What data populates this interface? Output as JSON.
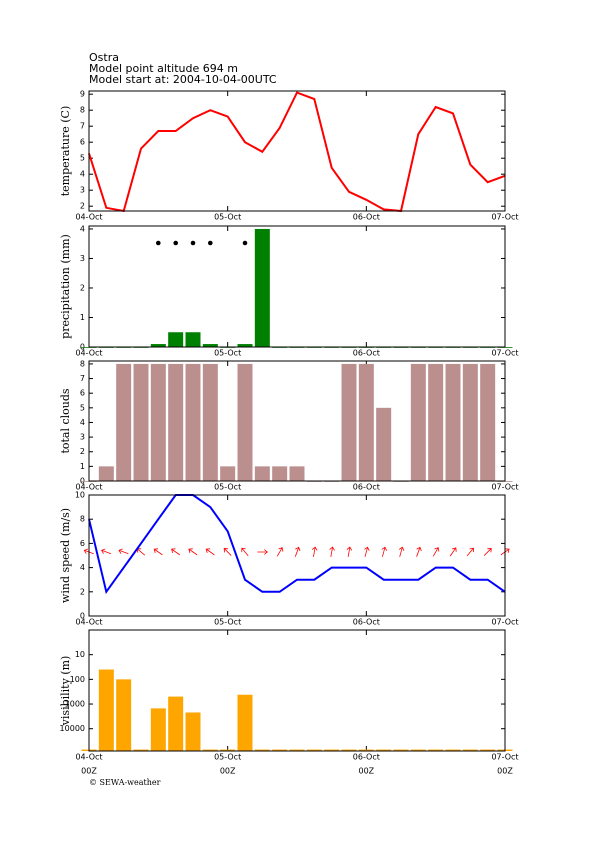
{
  "header": {
    "lines": [
      "Ostra",
      "Model point altitude  694 m",
      "Model start at: 2004-10-04-00UTC"
    ],
    "footer": "© SEWA-weather",
    "time_labels": [
      "00Z",
      "00Z",
      "00Z",
      "00Z"
    ]
  },
  "chart_data": [
    {
      "type": "line",
      "ylabel": "temperature (C)",
      "color": "#ff0000",
      "x": [
        0,
        3,
        6,
        9,
        12,
        15,
        18,
        21,
        24,
        27,
        30,
        33,
        36,
        39,
        42,
        45,
        48,
        51,
        54,
        57,
        60,
        63,
        66,
        69,
        72
      ],
      "values": [
        5.3,
        1.9,
        1.7,
        5.6,
        6.7,
        6.7,
        7.5,
        8.0,
        7.6,
        6.0,
        5.4,
        6.9,
        9.1,
        8.7,
        4.4,
        2.9,
        2.4,
        1.8,
        1.7,
        6.5,
        8.2,
        7.8,
        4.6,
        3.5,
        3.9
      ],
      "xlim": [
        0,
        72
      ],
      "xticks": [
        {
          "value": 0,
          "label": "04-Oct"
        },
        {
          "value": 24,
          "label": "05-Oct"
        },
        {
          "value": 48,
          "label": "06-Oct"
        },
        {
          "value": 72,
          "label": "07-Oct"
        }
      ],
      "ylim": [
        1.7,
        9.2
      ],
      "yticks": [
        2,
        3,
        4,
        5,
        6,
        7,
        8,
        9
      ]
    },
    {
      "type": "bar",
      "ylabel": "precipitation (mm)",
      "color": "#008000",
      "x": [
        0,
        3,
        6,
        9,
        12,
        15,
        18,
        21,
        24,
        27,
        30,
        33,
        36,
        39,
        42,
        45,
        48,
        51,
        54,
        57,
        60,
        63,
        66,
        69,
        72
      ],
      "values": [
        0,
        0,
        0,
        0,
        0.1,
        0.5,
        0.5,
        0.1,
        0,
        0.1,
        4.0,
        0,
        0,
        0,
        0,
        0,
        0,
        0,
        0,
        0,
        0,
        0,
        0,
        0,
        0
      ],
      "xlim": [
        0,
        72
      ],
      "xticks": [
        {
          "value": 0,
          "label": "04-Oct"
        },
        {
          "value": 24,
          "label": "05-Oct"
        },
        {
          "value": 48,
          "label": "06-Oct"
        },
        {
          "value": 72,
          "label": "07-Oct"
        }
      ],
      "ylim": [
        0,
        4.1
      ],
      "yticks": [
        0,
        1,
        2,
        3,
        4
      ]
    },
    {
      "type": "bar",
      "ylabel": "total clouds",
      "color": "#bc8f8f",
      "x": [
        0,
        3,
        6,
        9,
        12,
        15,
        18,
        21,
        24,
        27,
        30,
        33,
        36,
        39,
        42,
        45,
        48,
        51,
        54,
        57,
        60,
        63,
        66,
        69,
        72
      ],
      "values": [
        0,
        1,
        8,
        8,
        8,
        8,
        8,
        8,
        1,
        8,
        1,
        1,
        1,
        0,
        0,
        8,
        8,
        5,
        0,
        8,
        8,
        8,
        8,
        8,
        0
      ],
      "xlim": [
        0,
        72
      ],
      "xticks": [
        {
          "value": 0,
          "label": "04-Oct"
        },
        {
          "value": 24,
          "label": "05-Oct"
        },
        {
          "value": 48,
          "label": "06-Oct"
        },
        {
          "value": 72,
          "label": "07-Oct"
        }
      ],
      "ylim": [
        0,
        8.2
      ],
      "yticks": [
        0,
        1,
        2,
        3,
        4,
        5,
        6,
        7,
        8
      ]
    },
    {
      "type": "line",
      "ylabel": "wind speed (m/s)",
      "color": "#0000ff",
      "x": [
        0,
        3,
        6,
        9,
        12,
        15,
        18,
        21,
        24,
        27,
        30,
        33,
        36,
        39,
        42,
        45,
        48,
        51,
        54,
        57,
        60,
        63,
        66,
        69,
        72
      ],
      "values": [
        8,
        2,
        4,
        6,
        8,
        10,
        10,
        9,
        7,
        3,
        2,
        2,
        3,
        3,
        4,
        4,
        4,
        3,
        3,
        3,
        4,
        4,
        3,
        3,
        2
      ],
      "xlim": [
        0,
        72
      ],
      "xticks": [
        {
          "value": 0,
          "label": "04-Oct"
        },
        {
          "value": 24,
          "label": "05-Oct"
        },
        {
          "value": 48,
          "label": "06-Oct"
        },
        {
          "value": 72,
          "label": "07-Oct"
        }
      ],
      "ylim": [
        0,
        10
      ],
      "yticks": [
        0,
        2,
        4,
        6,
        8,
        10
      ]
    },
    {
      "type": "bar",
      "ylabel": "visibility (m)",
      "color": "#ffa500",
      "log": true,
      "inverted": true,
      "x": [
        0,
        3,
        6,
        9,
        12,
        15,
        18,
        21,
        24,
        27,
        30,
        33,
        36,
        39,
        42,
        45,
        48,
        51,
        54,
        57,
        60,
        63,
        66,
        69,
        72
      ],
      "values": [
        70000,
        40,
        100,
        70000,
        1500,
        500,
        2200,
        70000,
        70000,
        420,
        70000,
        70000,
        70000,
        70000,
        70000,
        70000,
        70000,
        70000,
        70000,
        70000,
        70000,
        70000,
        70000,
        70000,
        70000
      ],
      "xlim": [
        0,
        72
      ],
      "xticks": [
        {
          "value": 0,
          "label": "04-Oct"
        },
        {
          "value": 24,
          "label": "05-Oct"
        },
        {
          "value": 48,
          "label": "06-Oct"
        },
        {
          "value": 72,
          "label": "07-Oct"
        }
      ],
      "ylim": [
        1,
        80000
      ],
      "yticks": [
        10,
        100,
        1000,
        10000
      ]
    }
  ]
}
